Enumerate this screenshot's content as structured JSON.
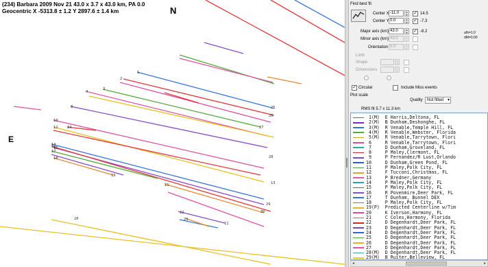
{
  "plot": {
    "title": "(234) Barbara  2009 Nov 21  43.0 x 3.7 x 43.0 km, PA 0.0",
    "subtitle": "Geocentric X -5313.8 ± 1.2  Y 2897.6 ± 1.4 km",
    "north_label": "N",
    "east_label": "E",
    "chord_labels": [
      "1",
      "2",
      "3",
      "4",
      "8",
      "10",
      "12",
      "14",
      "15",
      "16",
      "17",
      "18",
      "19",
      "20",
      "21",
      "22",
      "23",
      "24",
      "25",
      "26",
      "27",
      "28",
      "29",
      "30",
      "11",
      "13"
    ]
  },
  "panel": {
    "find_best_fit": "Find best fit",
    "center_x_label": "Center X",
    "center_x_value": "-11.0",
    "center_x_fit": "14.5",
    "center_y_label": "Center Y",
    "center_y_value": "0.0",
    "center_y_fit": "-7.3",
    "major_axis_label": "Major axis (km)",
    "major_axis_value": "43.0",
    "major_axis_fit": "-8.2",
    "minor_axis_label": "Minor axis (km)",
    "minor_axis_value": "43.0",
    "orientation_label": "Orientation",
    "orientation_value": "0.0",
    "side_note_1": "a/b=1.0",
    "side_note_2": "dM=0.00",
    "limb_label": "Limb",
    "shape_label": "Shape",
    "aux_label_1": "Dimensions",
    "circular_label": "Circular",
    "include_miss_label": "Include Miss events",
    "plot_scale_label": "Plot scale",
    "quality_label": "Quality",
    "quality_value": "Not fitted",
    "rms_label": "RMS fit 5.7 x 11.3 km"
  },
  "observers": [
    {
      "text": " 1(M)  E Harris,Deltona, FL",
      "color": "#e0304a"
    },
    {
      "text": " 2(M)  B Dunham,Deshonghe, FL",
      "color": "#7b2cc0"
    },
    {
      "text": " 3(M)  R Venable,Temple Hill, FL",
      "color": "#2a7ad8"
    },
    {
      "text": " 4(M)  R Venable,Webster, Florida",
      "color": "#5da83a"
    },
    {
      "text": " 5(M)  R Venable,Tarrytown, Flori",
      "color": "#d8a020"
    },
    {
      "text": " 6     R Venable,Tarrytown, Flori",
      "color": "#e04898"
    },
    {
      "text": " 7     D Dunham,Groveland, FL",
      "color": "#2aa8a8"
    },
    {
      "text": " 8     P Maley,Clermont, FL",
      "color": "#c02828"
    },
    {
      "text": " 9     P Fernandez/R Lust,Orlando",
      "color": "#7a48c8"
    },
    {
      "text": "10     D Dunham,Green Pond, FL",
      "color": "#2860c8"
    },
    {
      "text": "11     P Maley,Polk City, FL",
      "color": "#48a048"
    },
    {
      "text": "12     F Tucconi,Christmas, FL",
      "color": "#e0a030"
    },
    {
      "text": "13     P Bredner,Germany",
      "color": "#e058a8"
    },
    {
      "text": "14     P Maley,Polk City, FL",
      "color": "#28a0b8"
    },
    {
      "text": "15     P Maley,Polk City, FL",
      "color": "#d83028"
    },
    {
      "text": "16     R Povenmire,Deer Park, FL",
      "color": "#8050c8"
    },
    {
      "text": "17     T Dunham, Bunnel DEX",
      "color": "#3870d8"
    },
    {
      "text": "18     P Maley,Polk City, FL",
      "color": "#40a040"
    },
    {
      "text": "19(P)  Predicted Centerline w/Tim",
      "color": "#e8b020"
    },
    {
      "text": "20     K Iverson,Harmony, FL",
      "color": "#e048a0"
    },
    {
      "text": "21     C Coles,Harmony, Florida",
      "color": "#30a0a8"
    },
    {
      "text": "22     D Degenhardt,Deer Park, FL",
      "color": "#d02828"
    },
    {
      "text": "23     D Degenhardt,Deer Park, FL",
      "color": "#7848c8"
    },
    {
      "text": "24     D Degenhardt,Deer Park, FL",
      "color": "#3068d0"
    },
    {
      "text": "25     D Degenhardt,Deer Park, FL",
      "color": "#48a848"
    },
    {
      "text": "26     D Degenhardt,Deer Park, FL",
      "color": "#e8b020"
    },
    {
      "text": "27     D Degenhardt,Deer Park, FL",
      "color": "#e050a8"
    },
    {
      "text": "28(M)  D Degenhardt,Deer Park, FL",
      "color": "#38a0b0"
    },
    {
      "text": "29(M)  B Ruiter,Belleview, FL",
      "color": "#d8d020"
    }
  ],
  "colors": {
    "red": "#e2383a",
    "purple": "#8a4cc8",
    "blue": "#3a78d8",
    "green": "#52a83a",
    "yellow": "#e8c020",
    "pink": "#e050a0",
    "orange": "#e88830",
    "list_border": "#7f9db9"
  },
  "icons": {
    "fit_button": "ellipse-fit-icon",
    "dropdown": "chevron-down-icon",
    "splitter": "splitter-grip-icon"
  }
}
